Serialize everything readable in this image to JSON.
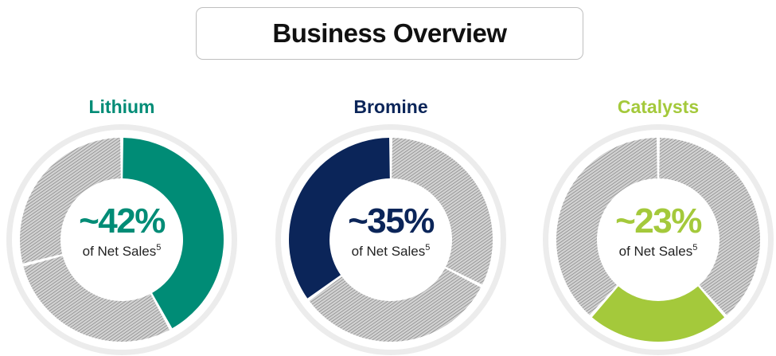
{
  "page": {
    "title": "Business Overview"
  },
  "chart_data": [
    {
      "type": "pie",
      "title": "Lithium",
      "value": 42,
      "value_label": "~42%",
      "caption": "of Net Sales",
      "footnote": "5",
      "color": "#008C76",
      "remainder_style": "hatched-gray"
    },
    {
      "type": "pie",
      "title": "Bromine",
      "value": 35,
      "value_label": "~35%",
      "caption": "of Net Sales",
      "footnote": "5",
      "color": "#0B2559",
      "remainder_style": "hatched-gray"
    },
    {
      "type": "pie",
      "title": "Catalysts",
      "value": 23,
      "value_label": "~23%",
      "caption": "of Net Sales",
      "footnote": "5",
      "color": "#A4C93B",
      "remainder_style": "hatched-gray"
    }
  ]
}
